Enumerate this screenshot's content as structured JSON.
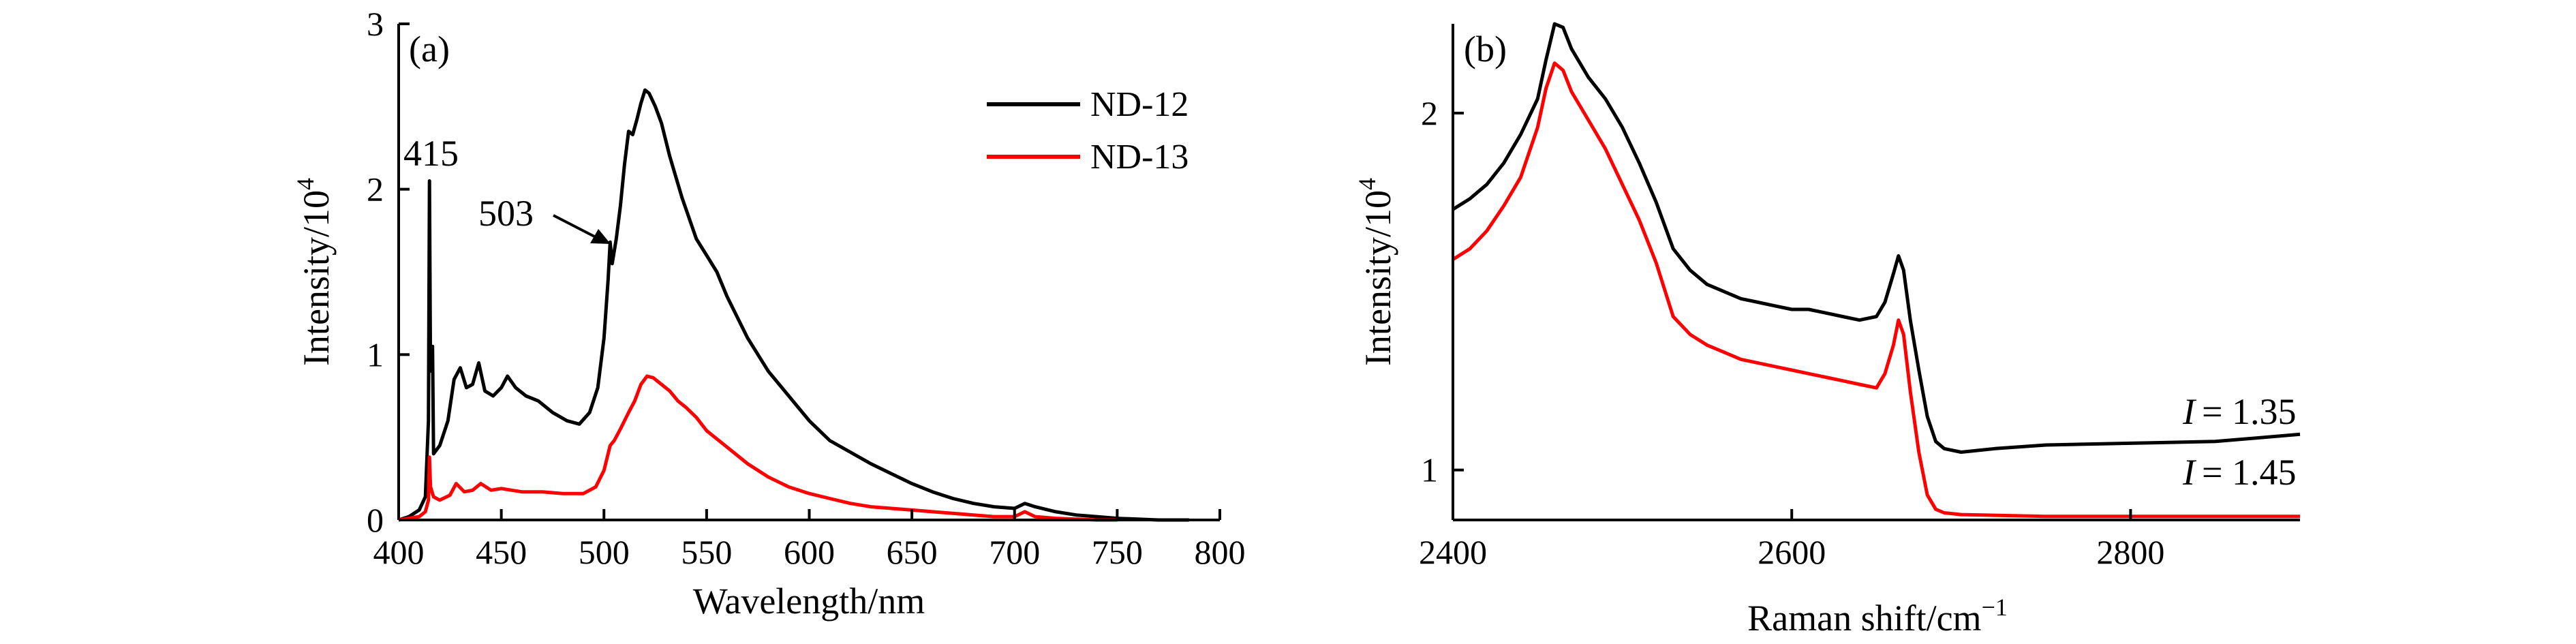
{
  "chart_data": [
    {
      "type": "line",
      "panel_label": "(a)",
      "xlabel": "Wavelength/nm",
      "ylabel": "Intensity/10",
      "ylabel_sup": "4",
      "xlim": [
        400,
        800
      ],
      "ylim": [
        0,
        3
      ],
      "xticks": [
        400,
        450,
        500,
        550,
        600,
        650,
        700,
        750,
        800
      ],
      "yticks": [
        0,
        1,
        2,
        3
      ],
      "legend_position": "top-right",
      "annotations": [
        {
          "text": "415",
          "x": 415,
          "y": 2.05
        },
        {
          "text": "503",
          "x": 503,
          "y": 1.65,
          "arrow": true
        }
      ],
      "series": [
        {
          "name": "ND-12",
          "color": "#000000",
          "points": [
            [
              400,
              0.0
            ],
            [
              405,
              0.02
            ],
            [
              410,
              0.06
            ],
            [
              413,
              0.14
            ],
            [
              414.5,
              0.6
            ],
            [
              415,
              2.05
            ],
            [
              415.5,
              0.9
            ],
            [
              416.5,
              1.05
            ],
            [
              417,
              0.4
            ],
            [
              420,
              0.45
            ],
            [
              424,
              0.6
            ],
            [
              427,
              0.85
            ],
            [
              430,
              0.92
            ],
            [
              433,
              0.8
            ],
            [
              436,
              0.82
            ],
            [
              439,
              0.95
            ],
            [
              442,
              0.78
            ],
            [
              446,
              0.75
            ],
            [
              450,
              0.8
            ],
            [
              453,
              0.87
            ],
            [
              457,
              0.8
            ],
            [
              462,
              0.75
            ],
            [
              468,
              0.72
            ],
            [
              475,
              0.65
            ],
            [
              482,
              0.6
            ],
            [
              488,
              0.58
            ],
            [
              493,
              0.65
            ],
            [
              497,
              0.8
            ],
            [
              500,
              1.1
            ],
            [
              502,
              1.45
            ],
            [
              503,
              1.68
            ],
            [
              504,
              1.55
            ],
            [
              506,
              1.7
            ],
            [
              508,
              1.9
            ],
            [
              510,
              2.15
            ],
            [
              512,
              2.35
            ],
            [
              514,
              2.33
            ],
            [
              516,
              2.42
            ],
            [
              518,
              2.52
            ],
            [
              520,
              2.6
            ],
            [
              522,
              2.58
            ],
            [
              525,
              2.5
            ],
            [
              528,
              2.4
            ],
            [
              532,
              2.2
            ],
            [
              538,
              1.95
            ],
            [
              545,
              1.7
            ],
            [
              550,
              1.6
            ],
            [
              555,
              1.5
            ],
            [
              560,
              1.35
            ],
            [
              570,
              1.1
            ],
            [
              580,
              0.9
            ],
            [
              590,
              0.75
            ],
            [
              600,
              0.6
            ],
            [
              610,
              0.48
            ],
            [
              620,
              0.41
            ],
            [
              630,
              0.34
            ],
            [
              640,
              0.28
            ],
            [
              650,
              0.22
            ],
            [
              660,
              0.17
            ],
            [
              670,
              0.13
            ],
            [
              680,
              0.1
            ],
            [
              690,
              0.08
            ],
            [
              700,
              0.07
            ],
            [
              705,
              0.1
            ],
            [
              710,
              0.08
            ],
            [
              720,
              0.05
            ],
            [
              730,
              0.03
            ],
            [
              740,
              0.02
            ],
            [
              750,
              0.01
            ],
            [
              760,
              0.005
            ],
            [
              770,
              0.0
            ],
            [
              780,
              0.0
            ],
            [
              785,
              0.0
            ]
          ]
        },
        {
          "name": "ND-13",
          "color": "#ff0000",
          "points": [
            [
              400,
              0.0
            ],
            [
              410,
              0.02
            ],
            [
              413,
              0.05
            ],
            [
              414.5,
              0.12
            ],
            [
              415,
              0.38
            ],
            [
              415.5,
              0.2
            ],
            [
              417,
              0.14
            ],
            [
              420,
              0.12
            ],
            [
              425,
              0.15
            ],
            [
              428,
              0.22
            ],
            [
              432,
              0.17
            ],
            [
              436,
              0.18
            ],
            [
              440,
              0.22
            ],
            [
              445,
              0.18
            ],
            [
              450,
              0.19
            ],
            [
              455,
              0.18
            ],
            [
              460,
              0.17
            ],
            [
              470,
              0.17
            ],
            [
              480,
              0.16
            ],
            [
              490,
              0.16
            ],
            [
              496,
              0.2
            ],
            [
              500,
              0.3
            ],
            [
              503,
              0.45
            ],
            [
              505,
              0.48
            ],
            [
              508,
              0.55
            ],
            [
              512,
              0.65
            ],
            [
              515,
              0.72
            ],
            [
              518,
              0.82
            ],
            [
              521,
              0.87
            ],
            [
              524,
              0.86
            ],
            [
              528,
              0.82
            ],
            [
              532,
              0.78
            ],
            [
              536,
              0.72
            ],
            [
              540,
              0.68
            ],
            [
              545,
              0.62
            ],
            [
              550,
              0.54
            ],
            [
              560,
              0.44
            ],
            [
              570,
              0.34
            ],
            [
              580,
              0.26
            ],
            [
              590,
              0.2
            ],
            [
              600,
              0.16
            ],
            [
              610,
              0.13
            ],
            [
              620,
              0.1
            ],
            [
              630,
              0.08
            ],
            [
              640,
              0.07
            ],
            [
              650,
              0.06
            ],
            [
              660,
              0.05
            ],
            [
              670,
              0.04
            ],
            [
              680,
              0.03
            ],
            [
              690,
              0.02
            ],
            [
              700,
              0.02
            ],
            [
              705,
              0.05
            ],
            [
              710,
              0.02
            ],
            [
              720,
              0.01
            ],
            [
              730,
              0.005
            ],
            [
              740,
              0.0
            ],
            [
              750,
              0.0
            ]
          ]
        }
      ]
    },
    {
      "type": "line",
      "panel_label": "(b)",
      "xlabel": "Raman shift/cm",
      "xlabel_sup": "−1",
      "ylabel": "Intensity/10",
      "ylabel_sup": "4",
      "xlim": [
        2400,
        2900
      ],
      "ylim": [
        0.86,
        2.25
      ],
      "xticks": [
        2400,
        2600,
        2800
      ],
      "yticks": [
        1,
        2
      ],
      "annotations": [
        {
          "text": "= 1.35",
          "italic_prefix": "I",
          "x": 2852,
          "y": 1.11
        },
        {
          "text": "= 1.45",
          "italic_prefix": "I",
          "x": 2852,
          "y": 0.94
        }
      ],
      "series": [
        {
          "name": "",
          "color": "#000000",
          "points": [
            [
              2400,
              1.73
            ],
            [
              2410,
              1.76
            ],
            [
              2420,
              1.8
            ],
            [
              2430,
              1.86
            ],
            [
              2440,
              1.94
            ],
            [
              2450,
              2.04
            ],
            [
              2455,
              2.15
            ],
            [
              2460,
              2.25
            ],
            [
              2465,
              2.24
            ],
            [
              2470,
              2.18
            ],
            [
              2480,
              2.1
            ],
            [
              2490,
              2.04
            ],
            [
              2500,
              1.96
            ],
            [
              2510,
              1.86
            ],
            [
              2520,
              1.75
            ],
            [
              2530,
              1.62
            ],
            [
              2540,
              1.56
            ],
            [
              2550,
              1.52
            ],
            [
              2560,
              1.5
            ],
            [
              2570,
              1.48
            ],
            [
              2580,
              1.47
            ],
            [
              2590,
              1.46
            ],
            [
              2600,
              1.45
            ],
            [
              2610,
              1.45
            ],
            [
              2620,
              1.44
            ],
            [
              2630,
              1.43
            ],
            [
              2640,
              1.42
            ],
            [
              2650,
              1.43
            ],
            [
              2655,
              1.47
            ],
            [
              2660,
              1.55
            ],
            [
              2663,
              1.6
            ],
            [
              2666,
              1.56
            ],
            [
              2670,
              1.42
            ],
            [
              2675,
              1.28
            ],
            [
              2680,
              1.15
            ],
            [
              2685,
              1.08
            ],
            [
              2690,
              1.06
            ],
            [
              2700,
              1.05
            ],
            [
              2720,
              1.06
            ],
            [
              2750,
              1.07
            ],
            [
              2800,
              1.075
            ],
            [
              2850,
              1.08
            ],
            [
              2900,
              1.1
            ]
          ]
        },
        {
          "name": "",
          "color": "#ff0000",
          "points": [
            [
              2400,
              1.59
            ],
            [
              2410,
              1.62
            ],
            [
              2420,
              1.67
            ],
            [
              2430,
              1.74
            ],
            [
              2440,
              1.82
            ],
            [
              2450,
              1.96
            ],
            [
              2455,
              2.07
            ],
            [
              2460,
              2.14
            ],
            [
              2465,
              2.12
            ],
            [
              2470,
              2.06
            ],
            [
              2480,
              1.98
            ],
            [
              2490,
              1.9
            ],
            [
              2500,
              1.8
            ],
            [
              2510,
              1.7
            ],
            [
              2520,
              1.58
            ],
            [
              2530,
              1.43
            ],
            [
              2540,
              1.38
            ],
            [
              2550,
              1.35
            ],
            [
              2560,
              1.33
            ],
            [
              2570,
              1.31
            ],
            [
              2580,
              1.3
            ],
            [
              2590,
              1.29
            ],
            [
              2600,
              1.28
            ],
            [
              2610,
              1.27
            ],
            [
              2620,
              1.26
            ],
            [
              2630,
              1.25
            ],
            [
              2640,
              1.24
            ],
            [
              2650,
              1.23
            ],
            [
              2655,
              1.27
            ],
            [
              2660,
              1.35
            ],
            [
              2663,
              1.42
            ],
            [
              2666,
              1.38
            ],
            [
              2670,
              1.22
            ],
            [
              2675,
              1.05
            ],
            [
              2680,
              0.93
            ],
            [
              2685,
              0.89
            ],
            [
              2690,
              0.88
            ],
            [
              2700,
              0.875
            ],
            [
              2750,
              0.87
            ],
            [
              2800,
              0.87
            ],
            [
              2850,
              0.87
            ],
            [
              2900,
              0.87
            ]
          ]
        }
      ]
    }
  ]
}
